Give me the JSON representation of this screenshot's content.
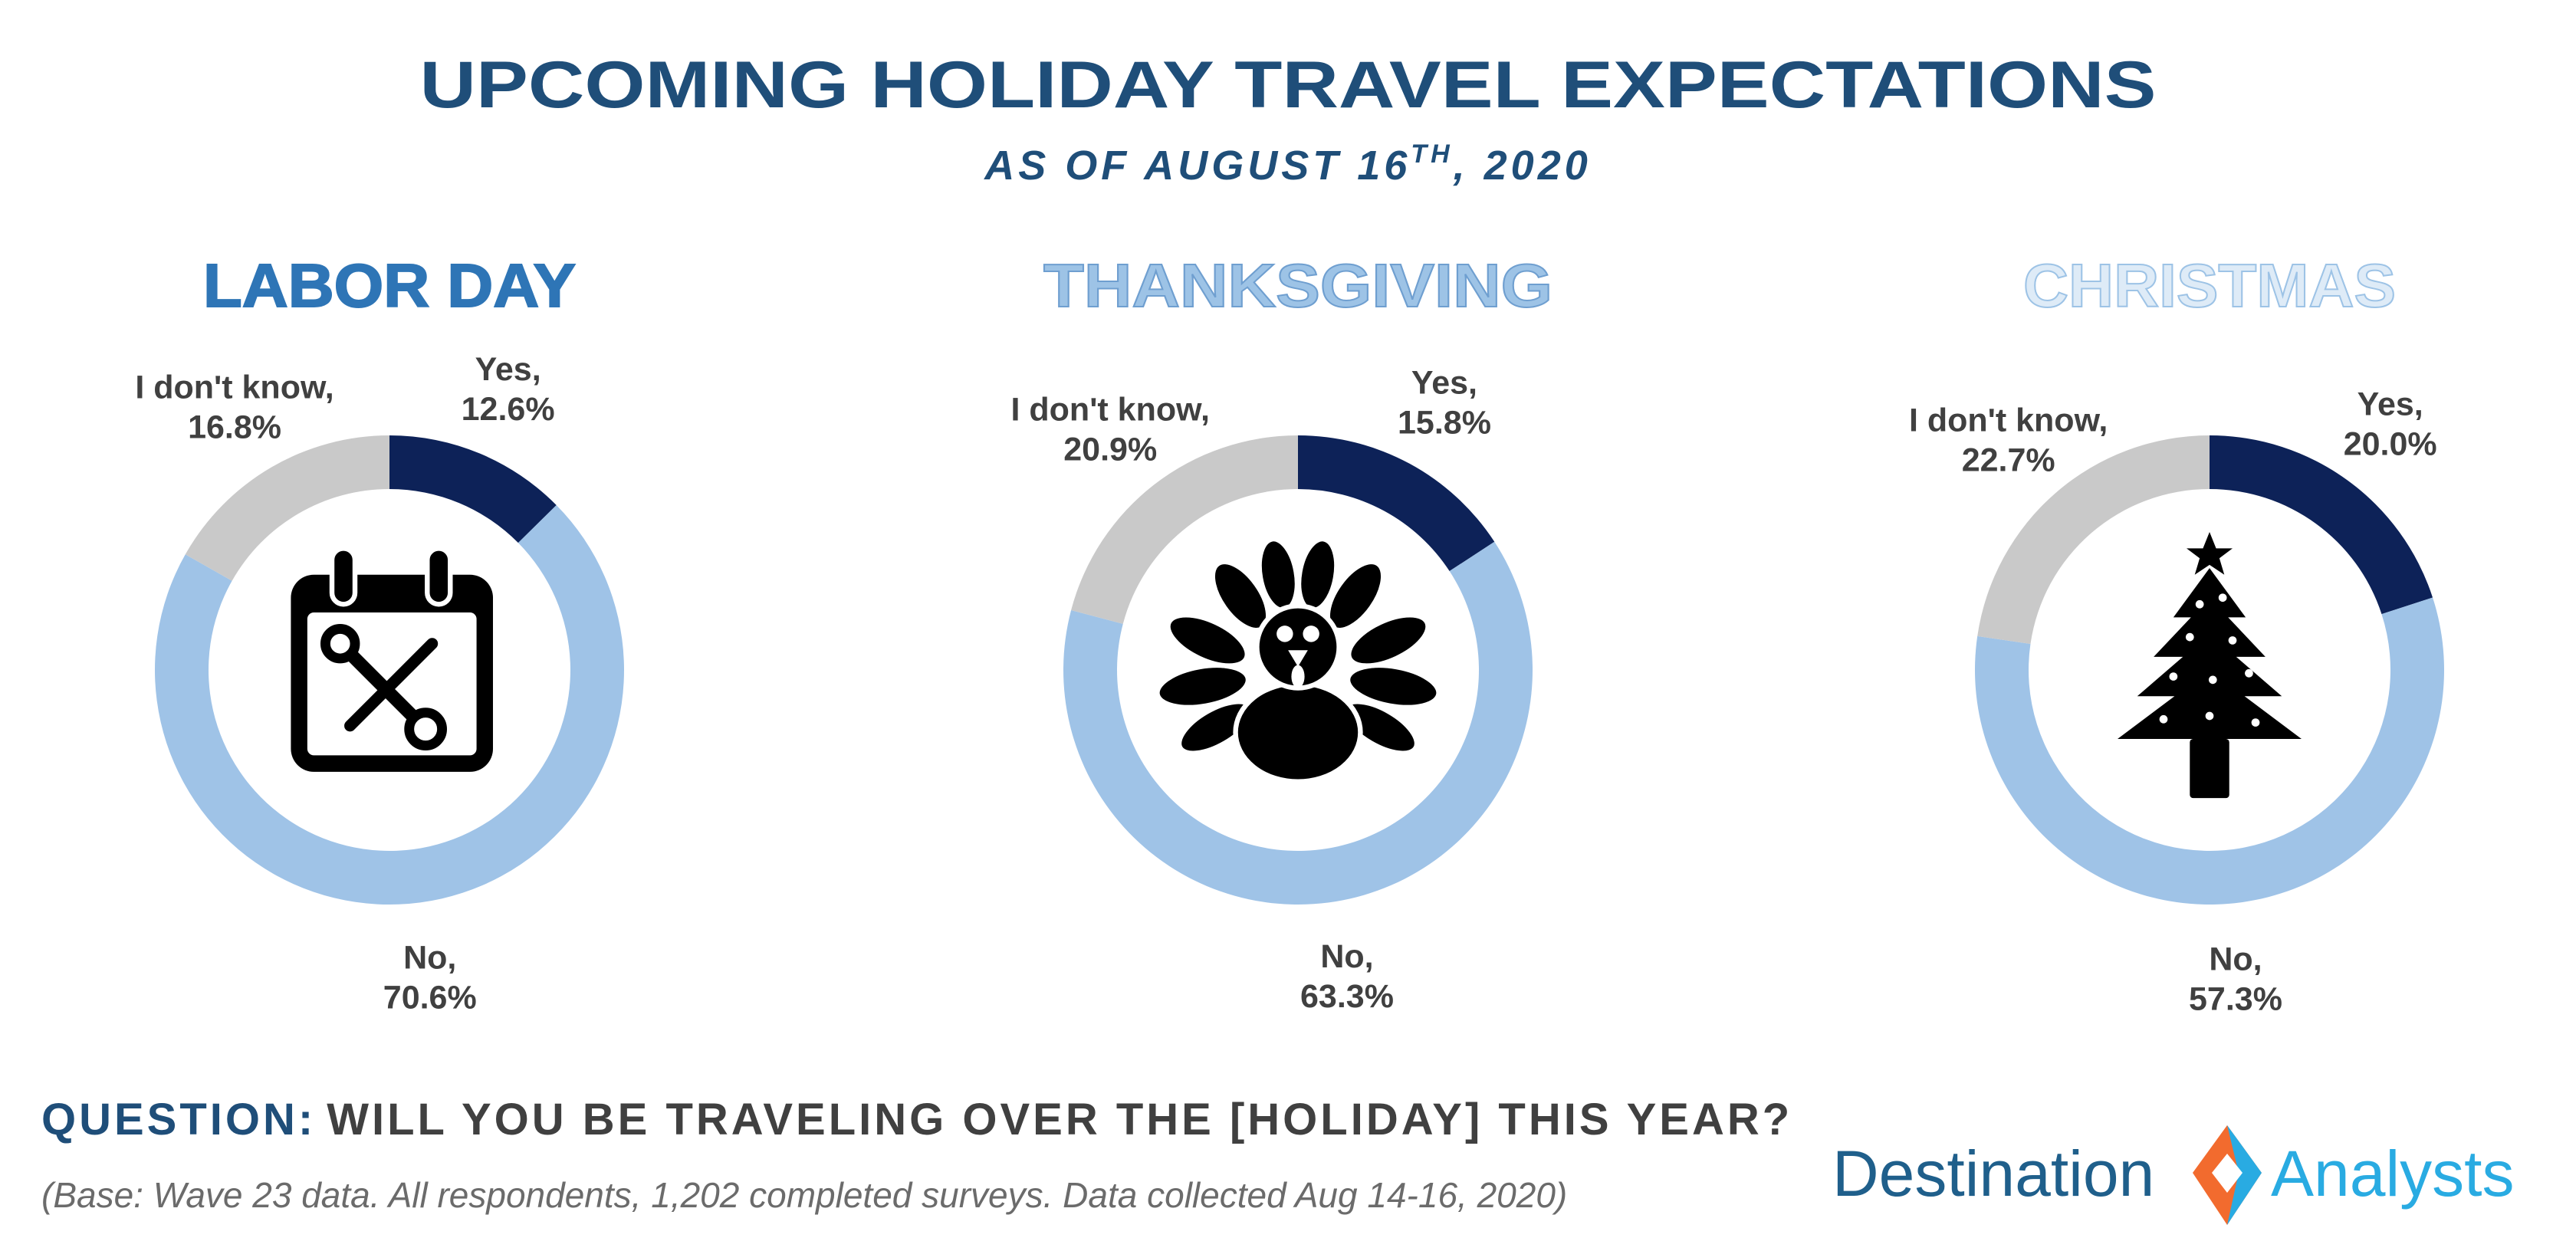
{
  "title": "UPCOMING HOLIDAY TRAVEL EXPECTATIONS",
  "subtitle": {
    "before": "AS OF AUGUST 16",
    "sup": "TH",
    "after": ", 2020"
  },
  "chart_data": [
    {
      "type": "pie",
      "title": "LABOR DAY",
      "title_color": "#2e75b6",
      "title_stroke": "#2e75b6",
      "categories": [
        "Yes,",
        "No,",
        "I don't know,"
      ],
      "values": [
        12.6,
        70.6,
        16.8
      ],
      "value_labels": [
        "12.6%",
        "70.6%",
        "16.8%"
      ],
      "colors": [
        "#0d2258",
        "#9fc3e7",
        "#c9c9c9"
      ]
    },
    {
      "type": "pie",
      "title": "THANKSGIVING",
      "title_color": "#9dc3e6",
      "title_stroke": "#6f9fd0",
      "categories": [
        "Yes,",
        "No,",
        "I don't know,"
      ],
      "values": [
        15.8,
        63.3,
        20.9
      ],
      "value_labels": [
        "15.8%",
        "63.3%",
        "20.9%"
      ],
      "colors": [
        "#0d2258",
        "#9fc3e7",
        "#c9c9c9"
      ]
    },
    {
      "type": "pie",
      "title": "CHRISTMAS",
      "title_color": "#deebf7",
      "title_stroke": "#9dc3e6",
      "categories": [
        "Yes,",
        "No,",
        "I don't know,"
      ],
      "values": [
        20.0,
        57.3,
        22.7
      ],
      "value_labels": [
        "20.0%",
        "57.3%",
        "22.7%"
      ],
      "colors": [
        "#0d2258",
        "#9fc3e7",
        "#c9c9c9"
      ]
    }
  ],
  "footer": {
    "question_label": "QUESTION:",
    "question": "WILL YOU BE TRAVELING OVER THE [HOLIDAY] THIS YEAR?",
    "base": "(Base: Wave 23 data. All respondents, 1,202 completed surveys. Data collected Aug 14-16, 2020)"
  },
  "logo": {
    "left": "Destination",
    "right": "Analysts"
  }
}
